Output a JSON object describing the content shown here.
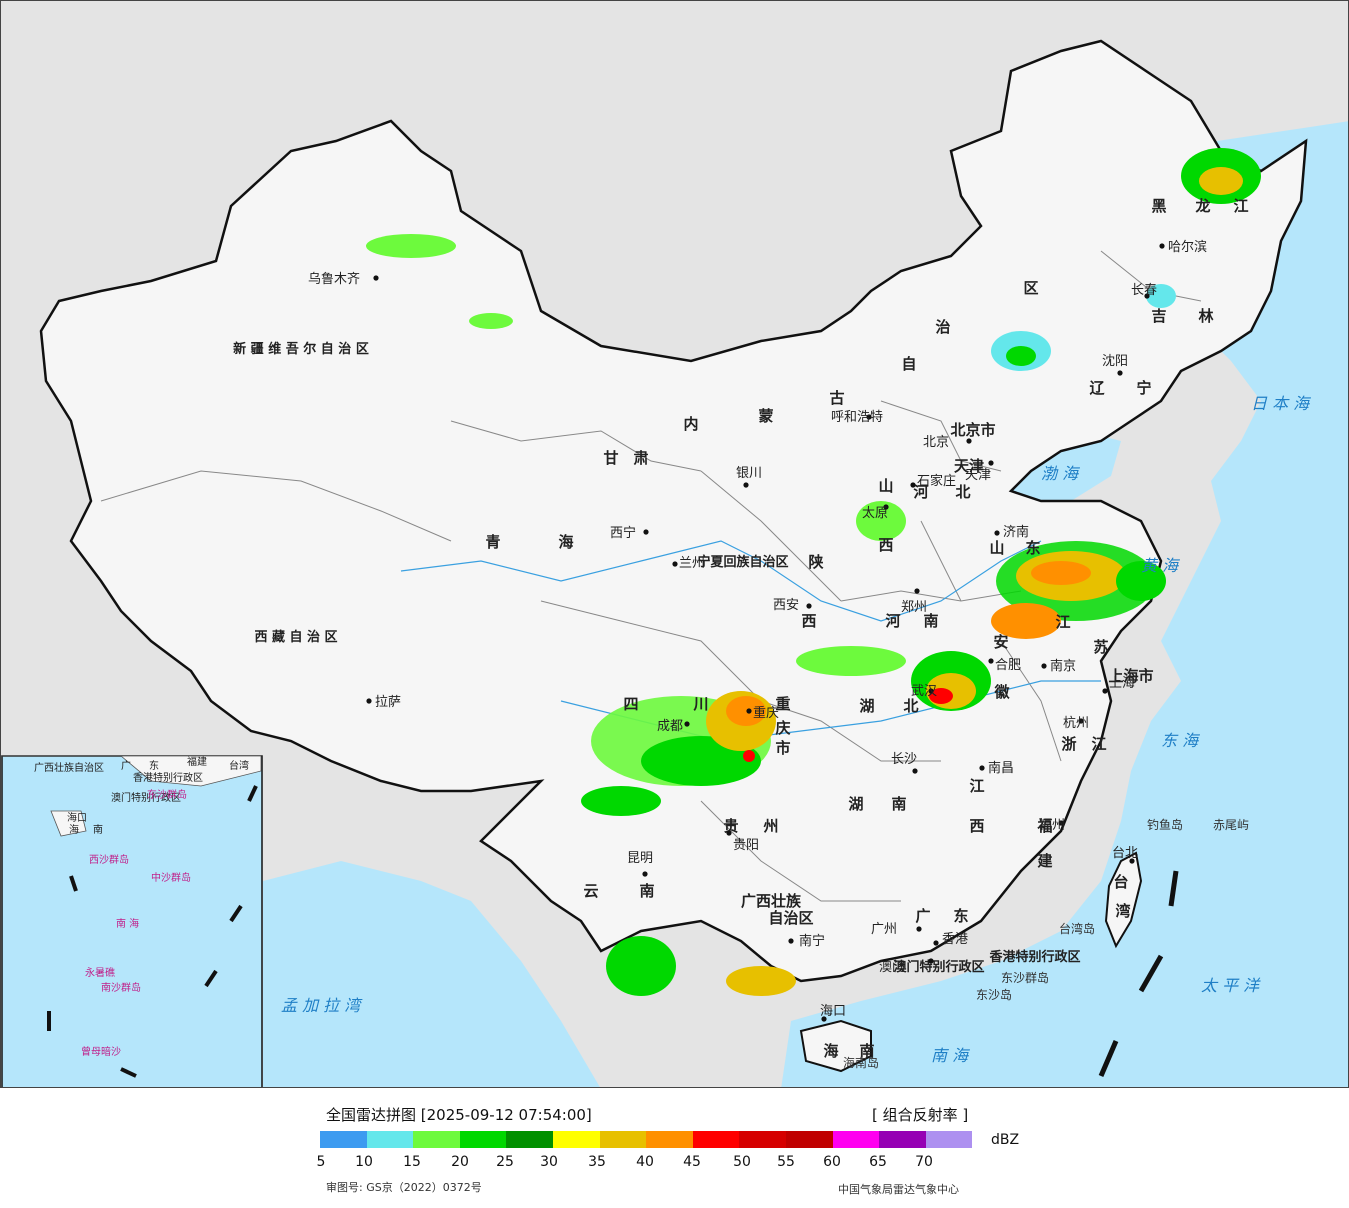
{
  "legend": {
    "title": "全国雷达拼图 [2025-09-12 07:54:00]",
    "product": "[ 组合反射率 ]",
    "unit": "dBZ",
    "ticks": [
      "5",
      "10",
      "15",
      "20",
      "25",
      "30",
      "35",
      "40",
      "45",
      "50",
      "55",
      "60",
      "65",
      "70"
    ],
    "colors": [
      "#3d9bf0",
      "#64e7eb",
      "#6dfa3d",
      "#00d800",
      "#019000",
      "#ffff00",
      "#e7c000",
      "#ff9000",
      "#ff0000",
      "#d60000",
      "#c00000",
      "#ff00f0",
      "#9600b4",
      "#ad90f0"
    ]
  },
  "footer": {
    "approval": "审图号: GS京（2022）0372号",
    "publisher": "中国气象局雷达气象中心"
  },
  "map": {
    "colors": {
      "sea": "#b5e6fb",
      "land": "#f5f5f5",
      "outside": "#e4e4e4",
      "border": "#111111"
    },
    "province_labels": [
      "新 疆 维 吾 尔 自 治 区",
      "西 藏 自 治 区",
      "青",
      "海",
      "甘",
      "肃",
      "内",
      "蒙",
      "古",
      "自",
      "治",
      "区",
      "黑",
      "龙",
      "江",
      "吉",
      "林",
      "辽",
      "宁",
      "山",
      "西",
      "陕",
      "西",
      "河",
      "南",
      "山",
      "东",
      "河",
      "北",
      "四",
      "川",
      "重",
      "庆",
      "市",
      "湖",
      "北",
      "湖",
      "南",
      "江",
      "西",
      "安",
      "徽",
      "江",
      "苏",
      "浙",
      "江",
      "福",
      "建",
      "贵",
      "州",
      "云",
      "南",
      "广",
      "东",
      "海",
      "南",
      "台",
      "湾",
      "广西壮族",
      "自治区",
      "宁夏回族自治区",
      "北京市",
      "天津",
      "上海市",
      "香港特别行政区",
      "澳门特别行政区"
    ],
    "cities": [
      "乌鲁木齐",
      "拉萨",
      "西宁",
      "兰州",
      "银川",
      "呼和浩特",
      "北京",
      "天津",
      "石家庄",
      "太原",
      "济南",
      "郑州",
      "西安",
      "成都",
      "重庆",
      "武汉",
      "合肥",
      "南京",
      "上海",
      "杭州",
      "长沙",
      "南昌",
      "福州",
      "台北",
      "贵阳",
      "昆明",
      "南宁",
      "广州",
      "香港",
      "澳门",
      "海口",
      "沈阳",
      "长春",
      "哈尔滨"
    ],
    "water_labels": [
      "日 本 海",
      "渤 海",
      "黄 海",
      "东 海",
      "太 平 洋",
      "南 海",
      "孟 加 拉 湾"
    ],
    "islands": [
      "钓鱼岛",
      "赤尾屿",
      "台湾岛",
      "东沙群岛",
      "东沙岛",
      "海南岛"
    ],
    "inset_labels": [
      "广西壮族自治区",
      "广",
      "东",
      "福建",
      "台湾",
      "香港特别行政区",
      "澳门特别行政区",
      "海口",
      "海",
      "南",
      "东沙群岛",
      "西沙群岛",
      "中沙群岛",
      "南 海",
      "南沙群岛",
      "永暑礁",
      "曾母暗沙"
    ]
  }
}
